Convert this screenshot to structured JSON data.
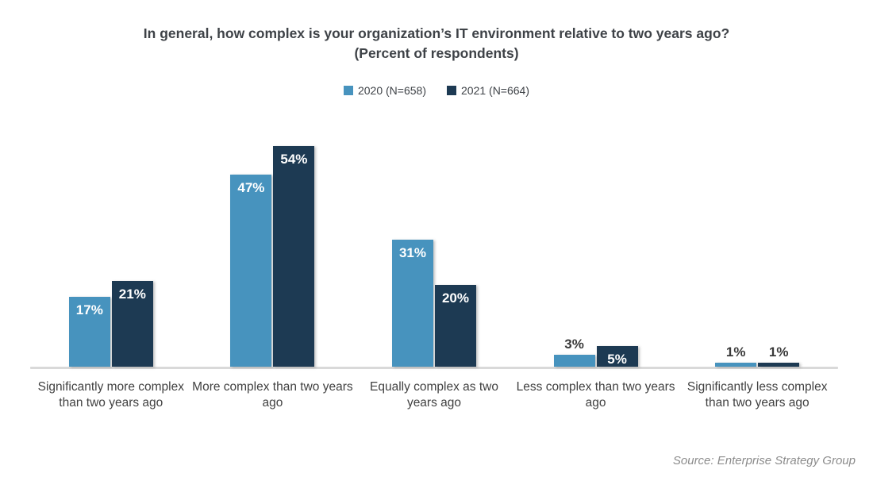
{
  "chart": {
    "title": "In general, how complex is your organization’s IT environment relative to two years ago?",
    "subtitle": "(Percent of respondents)",
    "source": "Source: Enterprise Strategy Group"
  },
  "chart_data": {
    "type": "bar",
    "title": "In general, how complex is your organization’s IT environment relative to two years ago? (Percent of respondents)",
    "categories": [
      "Significantly more complex than two years ago",
      "More complex than two years ago",
      "Equally complex as two years ago",
      "Less complex than two years ago",
      "Significantly less complex than two years ago"
    ],
    "series": [
      {
        "name": "2020 (N=658)",
        "color": "#4793BE",
        "values": [
          17,
          47,
          31,
          3,
          1
        ]
      },
      {
        "name": "2021 (N=664)",
        "color": "#1D3A53",
        "values": [
          21,
          54,
          20,
          5,
          1
        ]
      }
    ],
    "value_suffix": "%",
    "ylim": [
      0,
      54
    ],
    "grid": false,
    "legend_position": "top-center",
    "colors": {
      "baseline": "#D9D9D9",
      "label_inside": "#FFFFFF",
      "label_outside": "#3A3A3A",
      "title_text": "#3E4247",
      "axis_text": "#414141",
      "source_text": "#8C8C8C"
    }
  }
}
